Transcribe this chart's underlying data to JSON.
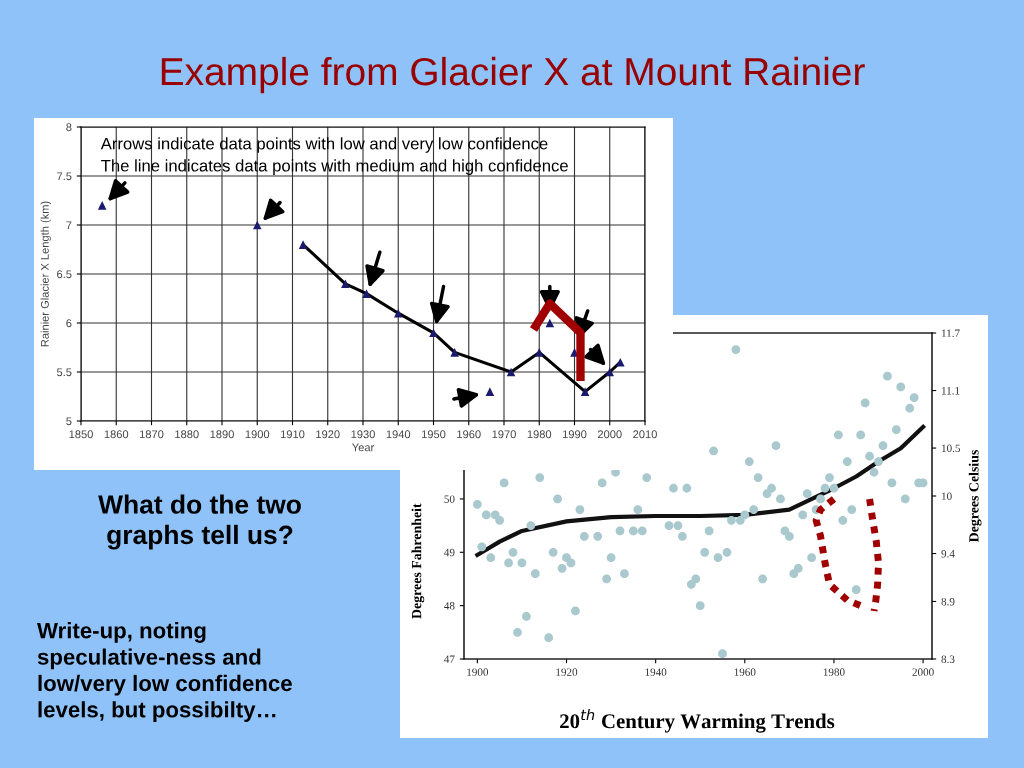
{
  "chart_data": [
    {
      "type": "other",
      "title": "Example from Glacier X at Mount Rainier",
      "annotations": [
        "What do the two\ngraphs tell us?",
        "Write-up, noting\nspeculative-ness and\nlow/very low confidence\nlevels, but possibilty…"
      ]
    },
    {
      "type": "scatter",
      "xlabel": "Year",
      "ylabel": "Rainier Glacier X Length (km)",
      "annotations": [
        "Arrows indicate data points with low and very low confidence",
        "The line indicates data points with medium and high confidence"
      ],
      "series": [
        {
          "type": "line",
          "color": "#000000",
          "marker": "none",
          "x": [
            1913,
            1925,
            1931,
            1940,
            1950,
            1956,
            1972,
            1980,
            1993,
            2000,
            2003
          ],
          "values": [
            6.8,
            6.4,
            6.3,
            6.1,
            5.9,
            5.7,
            5.5,
            5.7,
            5.3,
            5.5,
            5.6
          ]
        },
        {
          "type": "scatter",
          "color": "#1a1a6e",
          "marker": "triangle",
          "x": [
            1856,
            1900,
            1913,
            1925,
            1931,
            1940,
            1950,
            1956,
            1966,
            1972,
            1980,
            1983,
            1990,
            1993,
            2000,
            2003
          ],
          "values": [
            7.2,
            7.0,
            6.8,
            6.4,
            6.3,
            6.1,
            5.9,
            5.7,
            5.3,
            5.5,
            5.7,
            6.0,
            5.7,
            5.3,
            5.5,
            5.6
          ]
        }
      ],
      "xlim": [
        1850,
        2010
      ],
      "xticks": [
        1850,
        1860,
        1870,
        1880,
        1890,
        1900,
        1910,
        1920,
        1930,
        1940,
        1950,
        1960,
        1970,
        1980,
        1990,
        2000,
        2010
      ],
      "ylim": [
        5,
        8
      ],
      "yticks": [
        5,
        5.5,
        6,
        6.5,
        7,
        7.5,
        8
      ],
      "grid": true
    },
    {
      "type": "scatter",
      "title": "20$^{th}$ Century Warming Trends",
      "ylabel": "Degrees Fahrenheit",
      "y2label": "Degrees Celsius",
      "series": [
        {
          "type": "scatter",
          "color": "#a9c9ce",
          "marker": "circle",
          "x": [
            1900,
            1901,
            1902,
            1903,
            1904,
            1905,
            1906,
            1907,
            1908,
            1909,
            1910,
            1911,
            1912,
            1913,
            1914,
            1916,
            1917,
            1918,
            1919,
            1920,
            1921,
            1922,
            1923,
            1924,
            1927,
            1928,
            1929,
            1930,
            1931,
            1932,
            1933,
            1935,
            1936,
            1937,
            1938,
            1943,
            1944,
            1945,
            1946,
            1947,
            1948,
            1949,
            1950,
            1951,
            1952,
            1953,
            1954,
            1955,
            1956,
            1957,
            1958,
            1959,
            1960,
            1961,
            1962,
            1963,
            1964,
            1965,
            1966,
            1967,
            1968,
            1969,
            1970,
            1971,
            1972,
            1973,
            1974,
            1975,
            1976,
            1977,
            1978,
            1979,
            1980,
            1981,
            1982,
            1983,
            1984,
            1985,
            1986,
            1987,
            1988,
            1989,
            1990,
            1991,
            1992,
            1993,
            1994,
            1995,
            1996,
            1997,
            1998,
            1999,
            2000
          ],
          "values": [
            49.9,
            49.1,
            49.7,
            48.9,
            49.7,
            49.6,
            50.3,
            48.8,
            49.0,
            47.5,
            48.8,
            47.8,
            49.5,
            48.6,
            50.4,
            47.4,
            49.0,
            50.0,
            48.7,
            48.9,
            48.8,
            47.9,
            49.8,
            49.3,
            49.3,
            50.3,
            48.5,
            48.9,
            50.5,
            49.4,
            48.6,
            49.4,
            49.8,
            49.4,
            50.4,
            49.5,
            50.2,
            49.5,
            49.3,
            50.2,
            48.4,
            48.5,
            48.0,
            49.0,
            49.4,
            50.9,
            48.9,
            47.1,
            49.0,
            49.6,
            52.8,
            49.6,
            49.7,
            50.7,
            49.8,
            50.4,
            48.5,
            50.1,
            50.2,
            51.0,
            50.0,
            49.4,
            49.3,
            48.6,
            48.7,
            49.7,
            50.1,
            48.9,
            49.8,
            50.0,
            50.2,
            50.4,
            50.2,
            51.2,
            49.6,
            50.7,
            49.8,
            48.3,
            51.2,
            51.8,
            50.8,
            50.5,
            50.7,
            51.0,
            52.3,
            50.3,
            51.3,
            52.1,
            50.0,
            51.7,
            51.9,
            50.3,
            50.3
          ]
        },
        {
          "type": "line",
          "color": "#111111",
          "marker": "none",
          "x": [
            1900,
            1905,
            1910,
            1920,
            1930,
            1940,
            1950,
            1960,
            1970,
            1980,
            1985,
            1990,
            1995,
            2000
          ],
          "values": [
            48.95,
            49.2,
            49.4,
            49.58,
            49.66,
            49.68,
            49.68,
            49.7,
            49.8,
            50.2,
            50.42,
            50.7,
            50.95,
            51.35
          ]
        }
      ],
      "xlim": [
        1897,
        2002
      ],
      "xticks": [
        1900,
        1920,
        1940,
        1960,
        1980,
        2000
      ],
      "ylim": [
        47,
        53.11
      ],
      "yticks": [
        47,
        48,
        49,
        50
      ],
      "y2lim": [
        8.3,
        11.7
      ],
      "y2ticks": [
        8.3,
        8.9,
        9.4,
        10,
        10.5,
        11.1,
        11.7
      ],
      "grid": false
    }
  ]
}
